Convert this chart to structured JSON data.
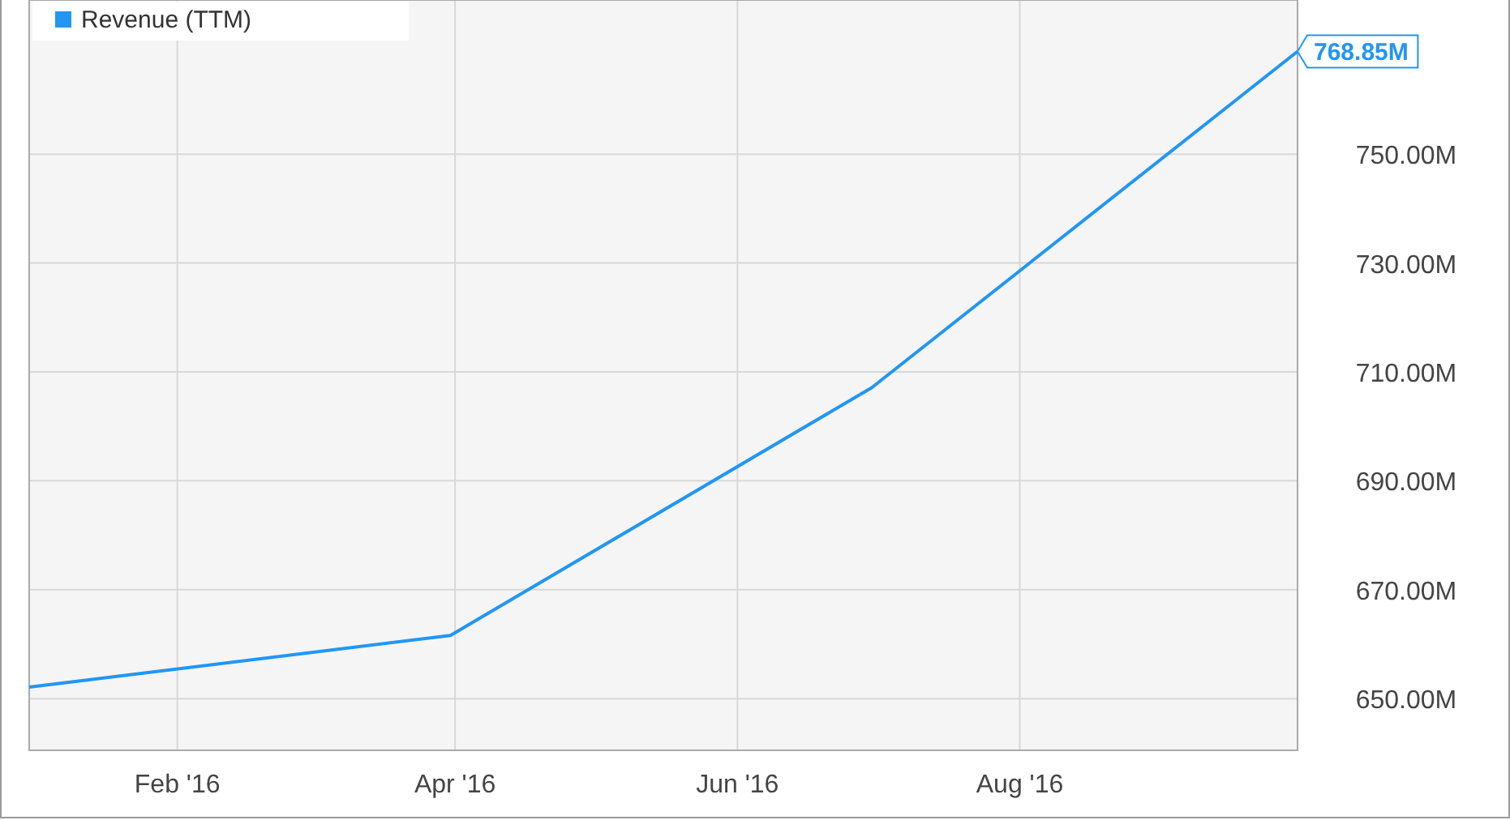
{
  "chart_data": {
    "type": "line",
    "x": [
      "2015-12-31",
      "2016-03-31",
      "2016-06-30",
      "2016-09-30"
    ],
    "series": [
      {
        "name": "Revenue (TTM)",
        "color": "#2196f3",
        "values": [
          652.1,
          661.6,
          707.1,
          768.85
        ],
        "value_labels": [
          null,
          null,
          null,
          "768.85M"
        ]
      }
    ],
    "xlim": [
      "2015-12-31",
      "2016-09-30"
    ],
    "xticks": [
      {
        "value": "2016-02-01",
        "label": "Feb '16"
      },
      {
        "value": "2016-04-01",
        "label": "Apr '16"
      },
      {
        "value": "2016-06-01",
        "label": "Jun '16"
      },
      {
        "value": "2016-08-01",
        "label": "Aug '16"
      }
    ],
    "ylim": [
      640.5,
      778.3
    ],
    "yticks": [
      {
        "value": 650,
        "label": "650.00M"
      },
      {
        "value": 670,
        "label": "670.00M"
      },
      {
        "value": 690,
        "label": "690.00M"
      },
      {
        "value": 710,
        "label": "710.00M"
      },
      {
        "value": 730,
        "label": "730.00M"
      },
      {
        "value": 750,
        "label": "750.00M"
      }
    ],
    "grid": true,
    "legend": "top left",
    "marker": "none"
  }
}
